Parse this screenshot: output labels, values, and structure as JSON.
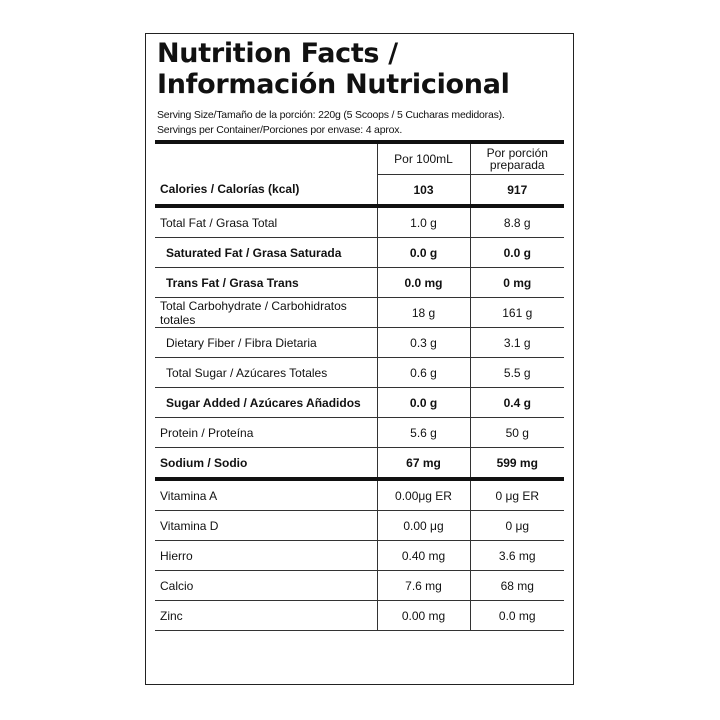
{
  "title_line1": "Nutrition Facts /",
  "title_line2": "Información Nutricional",
  "serving_size": "Serving Size/Tamaño de la porción: 220g (5 Scoops  /  5 Cucharas medidoras).",
  "servings_per_container": "Servings per Container/Porciones por envase: 4 aprox.",
  "columns": {
    "per100": "Por 100mL",
    "perserving_l1": "Por porción",
    "perserving_l2": "preparada"
  },
  "calories": {
    "label": "Calories / Calorías (kcal)",
    "per100": "103",
    "perserving": "917"
  },
  "rows": [
    {
      "label": "Total Fat / Grasa Total",
      "per100": "1.0 g",
      "perserving": "8.8 g"
    },
    {
      "label": "Saturated Fat / Grasa Saturada",
      "per100": "0.0 g",
      "perserving": "0.0 g"
    },
    {
      "label": "Trans Fat / Grasa Trans",
      "per100": "0.0 mg",
      "perserving": "0 mg"
    },
    {
      "label": "Total Carbohydrate / Carbohidratos totales",
      "per100": "18 g",
      "perserving": "161 g"
    },
    {
      "label": "Dietary Fiber / Fibra Dietaria",
      "per100": "0.3 g",
      "perserving": "3.1 g"
    },
    {
      "label": "Total Sugar / Azúcares Totales",
      "per100": "0.6 g",
      "perserving": "5.5 g"
    },
    {
      "label": "Sugar Added / Azúcares Añadidos",
      "per100": "0.0 g",
      "perserving": "0.4 g"
    },
    {
      "label": "Protein / Proteína",
      "per100": "5.6 g",
      "perserving": "50 g"
    },
    {
      "label": "Sodium / Sodio",
      "per100": "67 mg",
      "perserving": "599 mg"
    },
    {
      "label": "Vitamina A",
      "per100": "0.00μg ER",
      "perserving": "0 μg ER"
    },
    {
      "label": "Vitamina D",
      "per100": "0.00 μg",
      "perserving": "0 μg"
    },
    {
      "label": "Hierro",
      "per100": "0.40 mg",
      "perserving": "3.6 mg"
    },
    {
      "label": "Calcio",
      "per100": "7.6 mg",
      "perserving": "68 mg"
    },
    {
      "label": "Zinc",
      "per100": "0.00 mg",
      "perserving": "0.0 mg"
    }
  ]
}
